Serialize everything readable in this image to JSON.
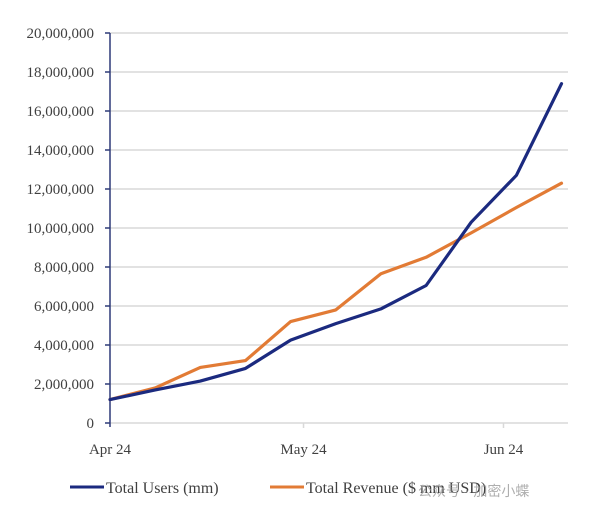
{
  "chart_data": {
    "type": "line",
    "title": "",
    "xlabel": "",
    "ylabel": "",
    "ylim": [
      0,
      20000000
    ],
    "yticks": [
      0,
      2000000,
      4000000,
      6000000,
      8000000,
      10000000,
      12000000,
      14000000,
      16000000,
      18000000,
      20000000
    ],
    "ytick_labels": [
      "0",
      "2,000,000",
      "4,000,000",
      "6,000,000",
      "8,000,000",
      "10,000,000",
      "12,000,000",
      "14,000,000",
      "16,000,000",
      "18,000,000",
      "20,000,000"
    ],
    "x_tick_labels": [
      "Apr 24",
      "May 24",
      "Jun 24"
    ],
    "x_tick_days": [
      0,
      30,
      61
    ],
    "x_range_days": [
      0,
      71
    ],
    "x_days": [
      0,
      7,
      14,
      21,
      28,
      35,
      42,
      49,
      56,
      63,
      70
    ],
    "grid": true,
    "legend_position": "bottom",
    "series": [
      {
        "name": "Total Users (mm)",
        "color": "#1b2a7f",
        "values": [
          1200000,
          1700000,
          2150000,
          2800000,
          4250000,
          5100000,
          5850000,
          7050000,
          10300000,
          12700000,
          17400000
        ]
      },
      {
        "name": "Total Revenue ($ mm USD)",
        "color": "#e27b35",
        "values": [
          1200000,
          1800000,
          2850000,
          3200000,
          5200000,
          5800000,
          7650000,
          8500000,
          9750000,
          11050000,
          12300000
        ]
      }
    ],
    "axis_color": "#2e3a78",
    "grid_color": "#d9d9d9"
  },
  "watermark": {
    "text": "公众号 · 加密小蝶"
  }
}
